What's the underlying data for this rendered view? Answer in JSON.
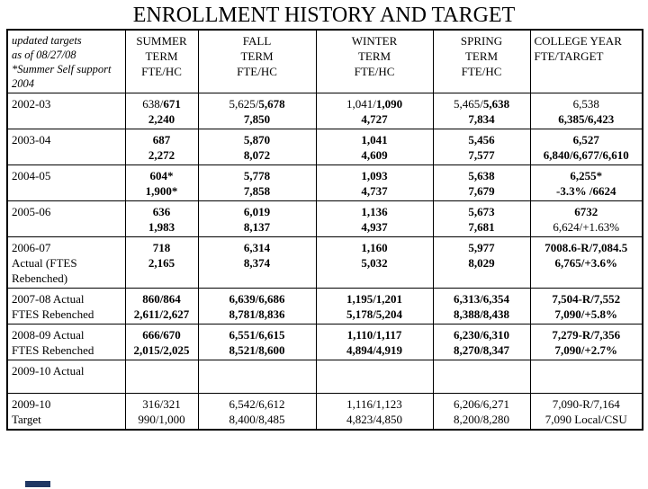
{
  "title": "ENROLLMENT HISTORY AND TARGET",
  "accent_color": "#203864",
  "table": {
    "corner": [
      "updated targets",
      "as of  08/27/08",
      "*Summer Self  support",
      "2004"
    ],
    "headers": [
      {
        "lines": [
          "SUMMER",
          "TERM",
          "FTE/HC"
        ],
        "align": "center"
      },
      {
        "lines": [
          "FALL",
          "TERM",
          "FTE/HC"
        ],
        "align": "center"
      },
      {
        "lines": [
          "WINTER",
          "TERM",
          "FTE/HC"
        ],
        "align": "center"
      },
      {
        "lines": [
          "SPRING",
          "TERM",
          "FTE/HC"
        ],
        "align": "center"
      },
      {
        "lines": [
          "COLLEGE YEAR",
          "FTE/TARGET"
        ],
        "align": "left"
      }
    ],
    "rows": [
      {
        "label": [
          "2002-03"
        ],
        "cells": [
          [
            [
              {
                "t": "638/",
                "b": false
              },
              {
                "t": "671",
                "b": true
              }
            ],
            [
              {
                "t": "2,240",
                "b": true
              }
            ]
          ],
          [
            [
              {
                "t": "5,625/",
                "b": false
              },
              {
                "t": "5,678",
                "b": true
              }
            ],
            [
              {
                "t": "7,850",
                "b": true
              }
            ]
          ],
          [
            [
              {
                "t": "1,041/",
                "b": false
              },
              {
                "t": "1,090",
                "b": true
              }
            ],
            [
              {
                "t": "4,727",
                "b": true
              }
            ]
          ],
          [
            [
              {
                "t": "5,465/",
                "b": false
              },
              {
                "t": "5,638",
                "b": true
              }
            ],
            [
              {
                "t": "7,834",
                "b": true
              }
            ]
          ],
          [
            [
              {
                "t": "6,538",
                "b": false
              }
            ],
            [
              {
                "t": "6,385/6,423",
                "b": true
              }
            ]
          ]
        ]
      },
      {
        "label": [
          "2003-04"
        ],
        "cells": [
          [
            [
              {
                "t": "687",
                "b": true
              }
            ],
            [
              {
                "t": "2,272",
                "b": true
              }
            ]
          ],
          [
            [
              {
                "t": "5,870",
                "b": true
              }
            ],
            [
              {
                "t": "8,072",
                "b": true
              }
            ]
          ],
          [
            [
              {
                "t": "1,041",
                "b": true
              }
            ],
            [
              {
                "t": "4,609",
                "b": true
              }
            ]
          ],
          [
            [
              {
                "t": "5,456",
                "b": true
              }
            ],
            [
              {
                "t": "7,577",
                "b": true
              }
            ]
          ],
          [
            [
              {
                "t": "6,527",
                "b": true
              }
            ],
            [
              {
                "t": "6,840/6,677/6,610",
                "b": true
              }
            ]
          ]
        ]
      },
      {
        "label": [
          "2004-05"
        ],
        "cells": [
          [
            [
              {
                "t": "604*",
                "b": true
              }
            ],
            [
              {
                "t": "1,900*",
                "b": true
              }
            ]
          ],
          [
            [
              {
                "t": "5,778",
                "b": true
              }
            ],
            [
              {
                "t": "7,858",
                "b": true
              }
            ]
          ],
          [
            [
              {
                "t": "1,093",
                "b": true
              }
            ],
            [
              {
                "t": "4,737",
                "b": true
              }
            ]
          ],
          [
            [
              {
                "t": "5,638",
                "b": true
              }
            ],
            [
              {
                "t": "7,679",
                "b": true
              }
            ]
          ],
          [
            [
              {
                "t": "6,255*",
                "b": true
              }
            ],
            [
              {
                "t": "-3.3% /6624",
                "b": true
              }
            ]
          ]
        ]
      },
      {
        "label": [
          "2005-06"
        ],
        "cells": [
          [
            [
              {
                "t": "636",
                "b": true
              }
            ],
            [
              {
                "t": "1,983",
                "b": true
              }
            ]
          ],
          [
            [
              {
                "t": "6,019",
                "b": true
              }
            ],
            [
              {
                "t": "8,137",
                "b": true
              }
            ]
          ],
          [
            [
              {
                "t": "1,136",
                "b": true
              }
            ],
            [
              {
                "t": "4,937",
                "b": true
              }
            ]
          ],
          [
            [
              {
                "t": "5,673",
                "b": true
              }
            ],
            [
              {
                "t": "7,681",
                "b": true
              }
            ]
          ],
          [
            [
              {
                "t": "6732",
                "b": true
              }
            ],
            [
              {
                "t": "6,624/+1.63%",
                "b": false
              }
            ]
          ]
        ]
      },
      {
        "label": [
          "2006-07",
          "Actual (FTES",
          "Rebenched)"
        ],
        "cells": [
          [
            [
              {
                "t": "718",
                "b": true
              }
            ],
            [
              {
                "t": "2,165",
                "b": true
              }
            ]
          ],
          [
            [
              {
                "t": "6,314",
                "b": true
              }
            ],
            [
              {
                "t": "8,374",
                "b": true
              }
            ]
          ],
          [
            [
              {
                "t": "1,160",
                "b": true
              }
            ],
            [
              {
                "t": "5,032",
                "b": true
              }
            ]
          ],
          [
            [
              {
                "t": "5,977",
                "b": true
              }
            ],
            [
              {
                "t": "8,029",
                "b": true
              }
            ]
          ],
          [
            [
              {
                "t": "7008.6-R/7,084.5",
                "b": true
              }
            ],
            [
              {
                "t": "6,765/+3.6%",
                "b": true
              }
            ]
          ]
        ]
      },
      {
        "label": [
          "2007-08 Actual",
          "FTES Rebenched"
        ],
        "cells": [
          [
            [
              {
                "t": "860/864",
                "b": true
              }
            ],
            [
              {
                "t": "2,611/2,627",
                "b": true
              }
            ]
          ],
          [
            [
              {
                "t": "6,639/6,686",
                "b": true
              }
            ],
            [
              {
                "t": "8,781/8,836",
                "b": true
              }
            ]
          ],
          [
            [
              {
                "t": "1,195/1,201",
                "b": true
              }
            ],
            [
              {
                "t": "5,178/5,204",
                "b": true
              }
            ]
          ],
          [
            [
              {
                "t": "6,313/6,354",
                "b": true
              }
            ],
            [
              {
                "t": "8,388/8,438",
                "b": true
              }
            ]
          ],
          [
            [
              {
                "t": "7,504-R/7,552",
                "b": true
              }
            ],
            [
              {
                "t": "7,090/+5.8%",
                "b": true
              }
            ]
          ]
        ]
      },
      {
        "label": [
          "2008-09 Actual",
          "FTES Rebenched"
        ],
        "cells": [
          [
            [
              {
                "t": "666/670",
                "b": true
              }
            ],
            [
              {
                "t": "2,015/2,025",
                "b": true
              }
            ]
          ],
          [
            [
              {
                "t": "6,551/6,615",
                "b": true
              }
            ],
            [
              {
                "t": "8,521/8,600",
                "b": true
              }
            ]
          ],
          [
            [
              {
                "t": "1,110/1,117",
                "b": true
              }
            ],
            [
              {
                "t": "4,894/4,919",
                "b": true
              }
            ]
          ],
          [
            [
              {
                "t": "6,230/6,310",
                "b": true
              }
            ],
            [
              {
                "t": "8,270/8,347",
                "b": true
              }
            ]
          ],
          [
            [
              {
                "t": "7,279-R/7,356",
                "b": true
              }
            ],
            [
              {
                "t": "7,090/+2.7%",
                "b": true
              }
            ]
          ]
        ]
      },
      {
        "label": [
          "2009-10 Actual"
        ],
        "cells": [
          [],
          [],
          [],
          [],
          []
        ]
      },
      {
        "label": [
          "2009-10",
          "Target"
        ],
        "cells": [
          [
            [
              {
                "t": "316/321",
                "b": false
              }
            ],
            [
              {
                "t": "990/1,000",
                "b": false
              }
            ]
          ],
          [
            [
              {
                "t": "6,542/6,612",
                "b": false
              }
            ],
            [
              {
                "t": "8,400/8,485",
                "b": false
              }
            ]
          ],
          [
            [
              {
                "t": "1,116/1,123",
                "b": false
              }
            ],
            [
              {
                "t": "4,823/4,850",
                "b": false
              }
            ]
          ],
          [
            [
              {
                "t": "6,206/6,271",
                "b": false
              }
            ],
            [
              {
                "t": "8,200/8,280",
                "b": false
              }
            ]
          ],
          [
            [
              {
                "t": "7,090-R/7,164",
                "b": false
              }
            ],
            [
              {
                "t": "7,090 Local/CSU",
                "b": false
              }
            ]
          ]
        ]
      }
    ]
  }
}
